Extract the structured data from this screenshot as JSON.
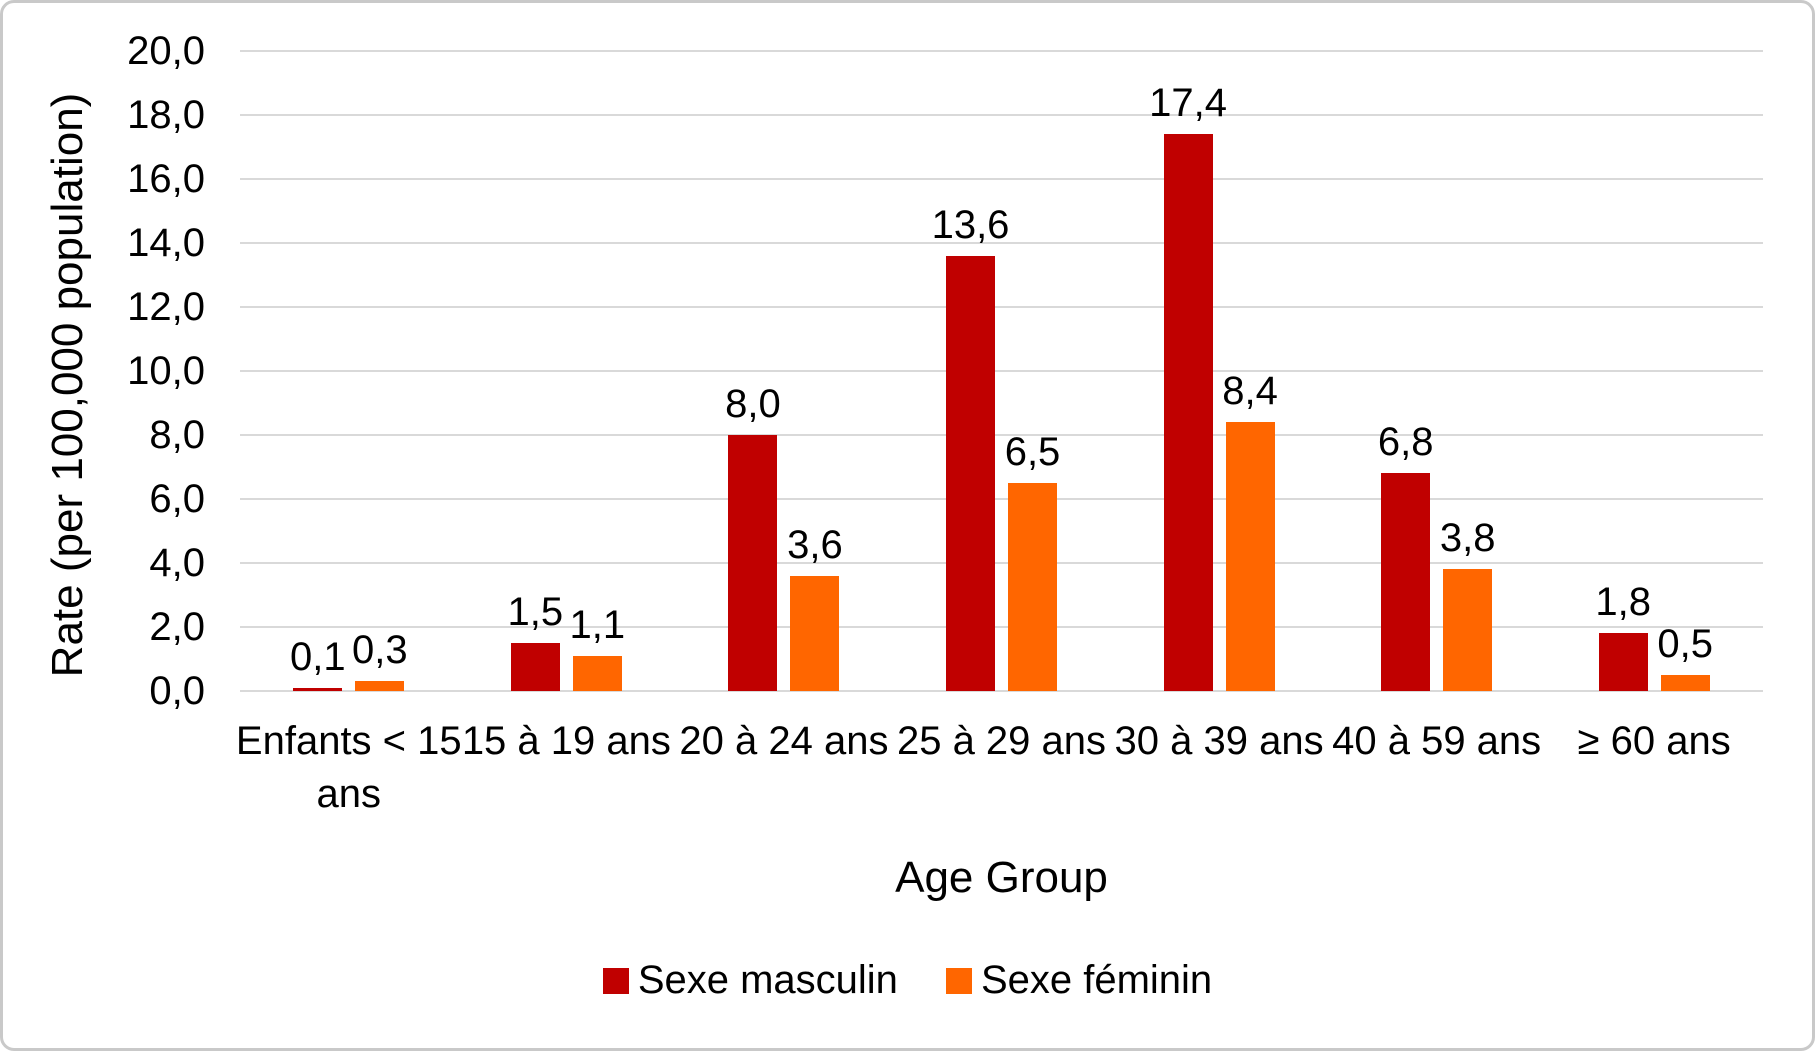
{
  "chart_data": {
    "type": "bar",
    "title": "",
    "xlabel": "Age Group",
    "ylabel": "Rate (per 100,000 population)",
    "categories": [
      "Enfants < 15 ans",
      "15 à 19 ans",
      "20 à 24 ans",
      "25 à 29 ans",
      "30 à 39 ans",
      "40 à 59 ans",
      "≥ 60 ans"
    ],
    "series": [
      {
        "name": "Sexe masculin",
        "color": "#c00000",
        "values": [
          0.1,
          1.5,
          8.0,
          13.6,
          17.4,
          6.8,
          1.8
        ],
        "labels": [
          "0,1",
          "1,5",
          "8,0",
          "13,6",
          "17,4",
          "6,8",
          "1,8"
        ]
      },
      {
        "name": "Sexe féminin",
        "color": "#ff6600",
        "values": [
          0.3,
          1.1,
          3.6,
          6.5,
          8.4,
          3.8,
          0.5
        ],
        "labels": [
          "0,3",
          "1,1",
          "3,6",
          "6,5",
          "8,4",
          "3,8",
          "0,5"
        ]
      }
    ],
    "ylim": [
      0,
      20
    ],
    "ytick_step": 2,
    "ytick_labels": [
      "0,0",
      "2,0",
      "4,0",
      "6,0",
      "8,0",
      "10,0",
      "12,0",
      "14,0",
      "16,0",
      "18,0",
      "20,0"
    ],
    "grid": true,
    "legend_position": "bottom",
    "decimal_separator": ","
  }
}
